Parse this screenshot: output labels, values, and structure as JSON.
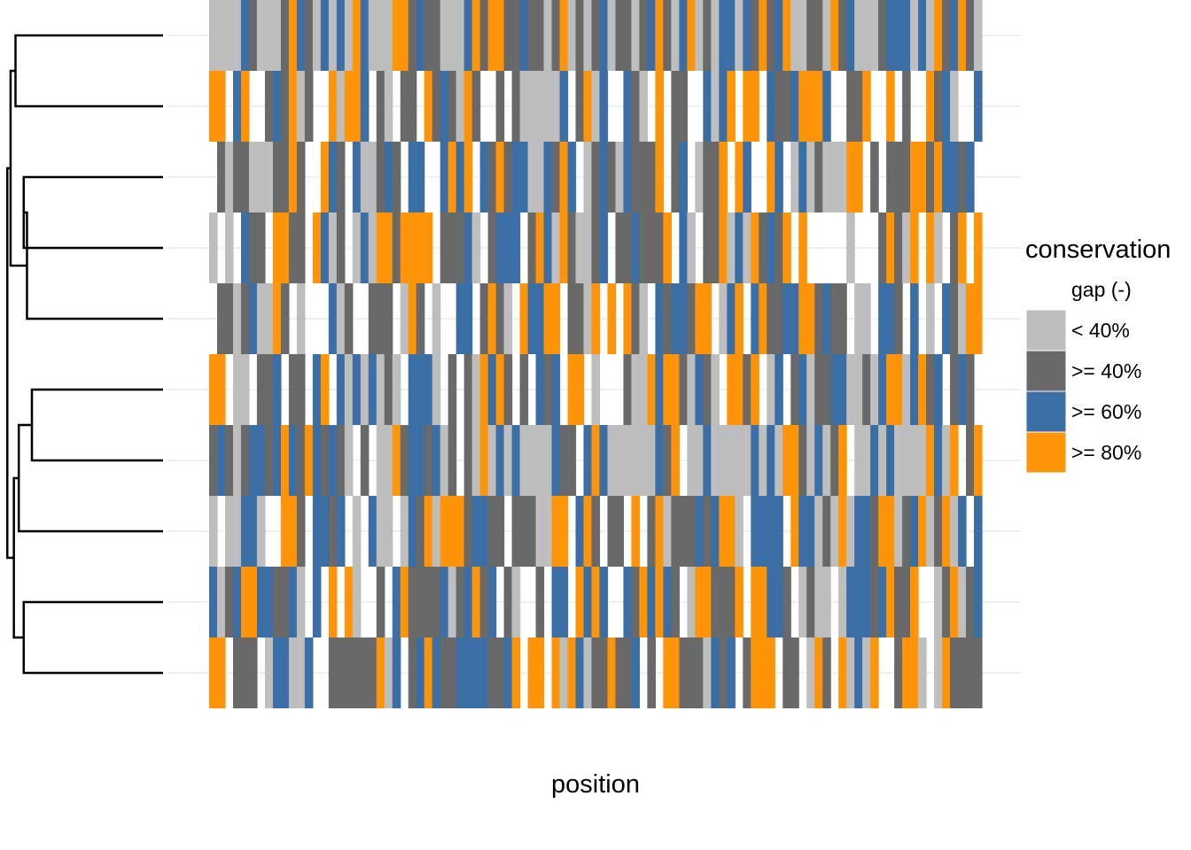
{
  "chart_data": {
    "type": "heatmap",
    "xlabel": "position",
    "ylabel": "",
    "legend": {
      "title": "conservation",
      "placement": "right",
      "entries": [
        {
          "label": "gap (-)",
          "color": "#ffffff"
        },
        {
          "label": "< 40%",
          "color": "#bebebe"
        },
        {
          "label": ">= 40%",
          "color": "#696969"
        },
        {
          "label": ">= 60%",
          "color": "#3a6ea5"
        },
        {
          "label": ">= 80%",
          "color": "#ff9408"
        }
      ]
    },
    "grid": true,
    "dendrogram": "left",
    "n_sequences": 10,
    "n_positions": 97,
    "category_index": {
      "gap (-)": 0,
      "< 40%": 1,
      ">= 40%": 2,
      ">= 60%": 3,
      ">= 80%": 4
    },
    "rows": [
      "1111321112432131314311144232211134244223221241212312212342134121331324234112214231112333131423421",
      "4403400232412004144302102204232142002021111130241300321040220031340440322344430022400402004231003",
      "0212211122420043203112320330034340324233113243012321322240230122404300430131211144020222442433230",
      "1010322044220431201314424444022231023330243142112302232224031022413142324040000010002421404102404",
      "0221231142010003120022201420100330242104334402214040421032332440134034223344232201103320301032144",
      "4401102230220340313131210333102021434202032304401000211434421321044240130231223311213441342302320",
      "2321233234324323210201142332312021413131111322034311111132401131111131314421312401131311114314024",
      "1011331004420332301031101324144423322022211440342022040241222323441033330433121413324412341241303",
      "3123443322310304041002034222231234230210020330434300324343201442224044332012110133323422400124123",
      "4402220133113002222224130234322333322340440414312242230204422213230244402201420413140024410142222"
    ],
    "dendrogram_merges": [
      {
        "items": [
          1,
          2
        ],
        "height": 0.9
      },
      {
        "items": [
          3,
          4
        ],
        "height": 0.85
      },
      {
        "items": [
          6,
          7
        ],
        "height": 0.8
      },
      {
        "items": [
          9,
          10
        ],
        "height": 0.85
      },
      {
        "items": [
          "3-4",
          5
        ],
        "height": 0.83
      },
      {
        "items": [
          "6-7",
          8
        ],
        "height": 0.88
      },
      {
        "items": [
          "1-2",
          "3-4-5"
        ],
        "height": 0.93
      },
      {
        "items": [
          "6-7-8",
          "9-10"
        ],
        "height": 0.91
      },
      {
        "items": [
          "A",
          "B"
        ],
        "height": 0.95
      }
    ]
  }
}
